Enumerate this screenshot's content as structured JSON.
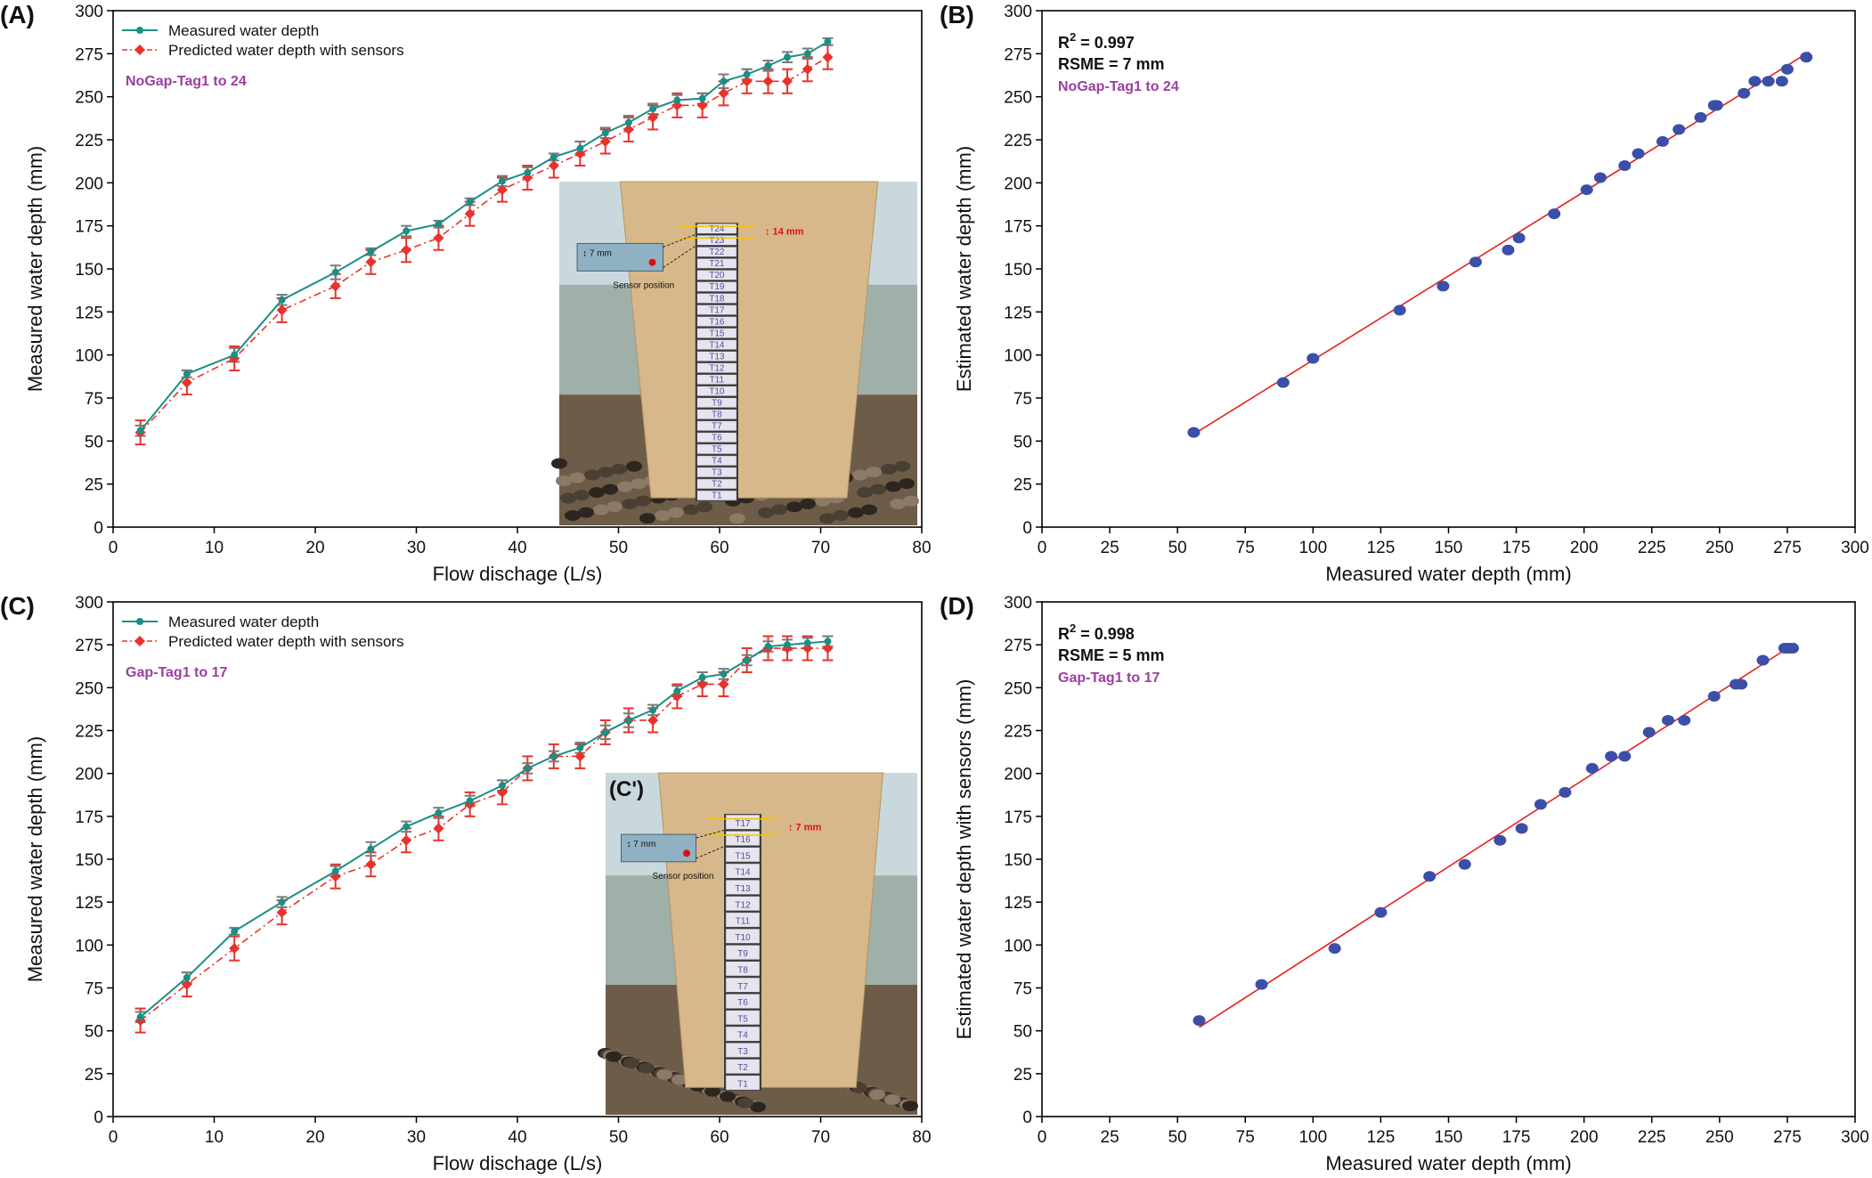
{
  "figure": {
    "description_free": true
  },
  "colors": {
    "measured": "#1a8f85",
    "predicted": "#e8322b",
    "error_bar_measured": "#7a7a7a",
    "scatter_point": "#3b4fa8",
    "fit_line": "#e62020",
    "annotation": "#9b3ea0",
    "axis": "#000000"
  },
  "chart_data": [
    {
      "id": "A",
      "panel_label": "(A)",
      "type": "line",
      "xlabel": "Flow dischage (L/s)",
      "ylabel": "Measured water depth (mm)",
      "xlim": [
        0,
        80
      ],
      "ylim": [
        0,
        300
      ],
      "xticks": [
        0,
        10,
        20,
        30,
        40,
        50,
        60,
        70,
        80
      ],
      "yticks": [
        0,
        25,
        50,
        75,
        100,
        125,
        150,
        175,
        200,
        225,
        250,
        275,
        300
      ],
      "legend": [
        "Measured water depth",
        "Predicted water depth with sensors"
      ],
      "annotation": "NoGap-Tag1 to 24",
      "x": [
        2.7,
        7.3,
        12,
        16.7,
        22,
        25.5,
        29,
        32.2,
        35.3,
        38.5,
        41,
        43.6,
        46.2,
        48.7,
        51,
        53.4,
        55.8,
        58.3,
        60.4,
        62.7,
        64.8,
        66.7,
        68.7,
        70.7
      ],
      "series": [
        {
          "name": "Measured water depth",
          "values": [
            56,
            89,
            100,
            132,
            148,
            160,
            172,
            176,
            189,
            201,
            206,
            215,
            220,
            229,
            235,
            243,
            248,
            249,
            259,
            263,
            268,
            273,
            275,
            282
          ],
          "err": [
            3,
            2,
            4,
            3,
            4,
            2,
            3,
            2,
            2,
            3,
            3,
            2,
            4,
            3,
            4,
            3,
            3,
            3,
            4,
            3,
            3,
            3,
            3,
            2
          ]
        },
        {
          "name": "Predicted water depth with sensors",
          "values": [
            55,
            84,
            98,
            126,
            140,
            154,
            161,
            168,
            182,
            196,
            203,
            210,
            217,
            224,
            231,
            238,
            245,
            245,
            252,
            259,
            259,
            259,
            266,
            273
          ],
          "err": [
            7,
            7,
            7,
            7,
            7,
            7,
            7,
            7,
            7,
            7,
            7,
            7,
            7,
            7,
            7,
            7,
            7,
            7,
            7,
            7,
            7,
            7,
            7,
            7
          ]
        }
      ],
      "inset": {
        "top_tag": "T24",
        "gap_label": "14 mm",
        "ruler_label": "7 mm",
        "sensor_label": "Sensor position",
        "panel_label": ""
      }
    },
    {
      "id": "B",
      "panel_label": "(B)",
      "type": "scatter",
      "xlabel": "Measured water depth (mm)",
      "ylabel": "Estimated water depth (mm)",
      "xlim": [
        0,
        300
      ],
      "ylim": [
        0,
        300
      ],
      "xticks": [
        0,
        25,
        50,
        75,
        100,
        125,
        150,
        175,
        200,
        225,
        250,
        275,
        300
      ],
      "xtick_labels": [
        "0",
        "25",
        "50",
        "75",
        "100",
        "125",
        "150",
        "175",
        "200",
        "225",
        "250",
        "275",
        "300"
      ],
      "yticks": [
        0,
        25,
        50,
        75,
        100,
        125,
        150,
        175,
        200,
        225,
        250,
        275,
        300
      ],
      "stats": {
        "r2_label": "R",
        "r2_value": "= 0.997",
        "rsme": "RSME = 7 mm"
      },
      "annotation": "NoGap-Tag1 to 24",
      "fit": {
        "x": [
          56,
          283
        ],
        "y": [
          54,
          276
        ]
      },
      "x": [
        56,
        89,
        100,
        132,
        148,
        160,
        172,
        176,
        189,
        201,
        206,
        215,
        220,
        229,
        235,
        243,
        248,
        249,
        259,
        263,
        268,
        273,
        275,
        282
      ],
      "y": [
        55,
        84,
        98,
        126,
        140,
        154,
        161,
        168,
        182,
        196,
        203,
        210,
        217,
        224,
        231,
        238,
        245,
        245,
        252,
        259,
        259,
        259,
        266,
        273
      ]
    },
    {
      "id": "C",
      "panel_label": "(C)",
      "type": "line",
      "xlabel": "Flow dischage (L/s)",
      "ylabel": "Measured water depth (mm)",
      "xlim": [
        0,
        80
      ],
      "ylim": [
        0,
        300
      ],
      "xticks": [
        0,
        10,
        20,
        30,
        40,
        50,
        60,
        70,
        80
      ],
      "yticks": [
        0,
        25,
        50,
        75,
        100,
        125,
        150,
        175,
        200,
        225,
        250,
        275,
        300
      ],
      "legend": [
        "Measured water depth",
        "Predicted water depth with sensors"
      ],
      "annotation": "Gap-Tag1 to 17",
      "x": [
        2.7,
        7.3,
        12,
        16.7,
        22,
        25.5,
        29,
        32.2,
        35.3,
        38.5,
        41,
        43.6,
        46.2,
        48.7,
        51,
        53.4,
        55.8,
        58.3,
        60.4,
        62.7,
        64.8,
        66.7,
        68.7,
        70.7
      ],
      "series": [
        {
          "name": "Measured water depth",
          "values": [
            58,
            81,
            108,
            125,
            143,
            156,
            169,
            177,
            184,
            193,
            203,
            210,
            215,
            224,
            231,
            237,
            248,
            256,
            258,
            266,
            274,
            275,
            276,
            277
          ],
          "err": [
            3,
            3,
            2,
            3,
            3,
            4,
            3,
            3,
            3,
            3,
            3,
            3,
            3,
            4,
            4,
            3,
            3,
            3,
            3,
            3,
            3,
            3,
            3,
            3
          ]
        },
        {
          "name": "Predicted water depth with sensors",
          "values": [
            56,
            77,
            98,
            119,
            140,
            147,
            161,
            168,
            182,
            189,
            203,
            210,
            210,
            224,
            231,
            231,
            245,
            252,
            252,
            266,
            273,
            273,
            273,
            273
          ],
          "err": [
            7,
            7,
            7,
            7,
            7,
            7,
            7,
            7,
            7,
            7,
            7,
            7,
            7,
            7,
            7,
            7,
            7,
            7,
            7,
            7,
            7,
            7,
            7,
            7
          ]
        }
      ],
      "inset": {
        "top_tag": "T17",
        "gap_label": "7 mm",
        "ruler_label": "7 mm",
        "sensor_label": "Sensor position",
        "panel_label": "(C')"
      }
    },
    {
      "id": "D",
      "panel_label": "(D)",
      "type": "scatter",
      "xlabel": "Measured water depth (mm)",
      "ylabel": "Estimated water depth with sensors (mm)",
      "xlim": [
        0,
        300
      ],
      "ylim": [
        0,
        300
      ],
      "xticks": [
        0,
        25,
        50,
        75,
        100,
        125,
        150,
        175,
        200,
        225,
        250,
        275,
        300
      ],
      "xtick_labels": [
        "0",
        "25",
        "50",
        "75",
        "100",
        "125",
        "150",
        "175",
        "200",
        "225",
        "250",
        "275",
        "300"
      ],
      "yticks": [
        0,
        25,
        50,
        75,
        100,
        125,
        150,
        175,
        200,
        225,
        250,
        275,
        300
      ],
      "stats": {
        "r2_label": "R",
        "r2_value": "= 0.998",
        "rsme": "RSME = 5 mm"
      },
      "annotation": "Gap-Tag1 to 17",
      "fit": {
        "x": [
          58,
          278
        ],
        "y": [
          52,
          276
        ]
      },
      "x": [
        58,
        81,
        108,
        125,
        143,
        156,
        169,
        177,
        184,
        193,
        203,
        210,
        215,
        224,
        231,
        237,
        248,
        256,
        258,
        266,
        274,
        275,
        276,
        277
      ],
      "y": [
        56,
        77,
        98,
        119,
        140,
        147,
        161,
        168,
        182,
        189,
        203,
        210,
        210,
        224,
        231,
        231,
        245,
        252,
        252,
        266,
        273,
        273,
        273,
        273
      ]
    }
  ]
}
